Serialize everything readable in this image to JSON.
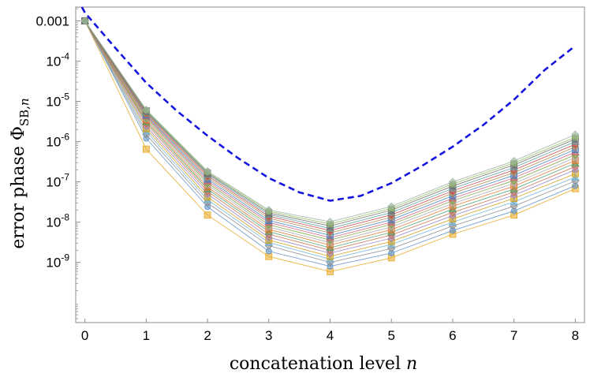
{
  "chart_data": {
    "type": "line",
    "title": "",
    "xlabel": "concatenation level n",
    "ylabel": "error phase Φ_SB,n",
    "yscale": "log",
    "xlim": [
      -0.15,
      8.15
    ],
    "ylim": [
      3.2e-11,
      0.0022
    ],
    "grid": false,
    "legend": "none",
    "x_ticks": [
      0,
      1,
      2,
      3,
      4,
      5,
      6,
      7,
      8
    ],
    "x_tick_labels": [
      "0",
      "1",
      "2",
      "3",
      "4",
      "5",
      "6",
      "7",
      "8"
    ],
    "y_ticks": [
      1e-09,
      1e-08,
      1e-07,
      1e-06,
      1e-05,
      0.0001,
      0.001
    ],
    "y_tick_labels": [
      {
        "base": "10",
        "exp": "-9"
      },
      {
        "base": "10",
        "exp": "-8"
      },
      {
        "base": "10",
        "exp": "-7"
      },
      {
        "base": "10",
        "exp": "-6"
      },
      {
        "base": "10",
        "exp": "-5"
      },
      {
        "base": "10",
        "exp": "-4"
      },
      {
        "base": "0.001",
        "exp": ""
      }
    ],
    "x": [
      0,
      1,
      2,
      3,
      4,
      5,
      6,
      7,
      8
    ],
    "bound": {
      "style": "dashed",
      "color": "#1515e0",
      "x": [
        -0.05,
        0,
        0.5,
        1,
        1.5,
        2,
        2.5,
        3,
        3.5,
        4,
        4.5,
        5,
        5.5,
        6,
        6.5,
        7,
        7.5,
        8
      ],
      "values": [
        0.0022,
        0.0016,
        0.00021,
        2.9e-05,
        5.8e-06,
        1.4e-06,
        3.9e-07,
        1.25e-07,
        5.5e-08,
        3.4e-08,
        4.5e-08,
        9.3e-08,
        2.5e-07,
        7.5e-07,
        2.6e-06,
        1.1e-05,
        6e-05,
        0.00024
      ]
    },
    "series": [
      {
        "color": "#e8a820",
        "values": [
          0.001,
          6.5e-07,
          1.5e-08,
          1.4e-09,
          5.9e-10,
          1.3e-09,
          5e-09,
          1.5e-08,
          6.8e-08
        ]
      },
      {
        "color": "#5b8fc8",
        "values": [
          0.001,
          1.2e-06,
          2.4e-08,
          1.9e-09,
          8e-10,
          1.7e-09,
          6.2e-09,
          1.9e-08,
          8e-08
        ]
      },
      {
        "color": "#8a8a8a",
        "values": [
          0.001,
          1.5e-06,
          3e-08,
          2.6e-09,
          1e-09,
          2.2e-09,
          8e-09,
          2.5e-08,
          1.05e-07
        ]
      },
      {
        "color": "#6fb3d6",
        "values": [
          0.001,
          1.8e-06,
          3.6e-08,
          3.1e-09,
          1.2e-09,
          2.8e-09,
          1e-08,
          3.2e-08,
          1.3e-07
        ]
      },
      {
        "color": "#d4a017",
        "values": [
          0.001,
          2.1e-06,
          4.2e-08,
          3.6e-09,
          1.4e-09,
          3.3e-09,
          1.2e-08,
          3.9e-08,
          1.6e-07
        ]
      },
      {
        "color": "#9a7fc4",
        "values": [
          0.001,
          2.4e-06,
          5e-08,
          4.2e-09,
          1.7e-09,
          4e-09,
          1.45e-08,
          4.7e-08,
          2e-07
        ]
      },
      {
        "color": "#c86f4a",
        "values": [
          0.001,
          2.8e-06,
          5.8e-08,
          5e-09,
          2e-09,
          4.8e-09,
          1.75e-08,
          5.6e-08,
          2.4e-07
        ]
      },
      {
        "color": "#4a9e6b",
        "values": [
          0.001,
          3.1e-06,
          6.6e-08,
          5.8e-09,
          2.3e-09,
          5.6e-09,
          2.1e-08,
          6.6e-08,
          2.9e-07
        ]
      },
      {
        "color": "#e0742b",
        "values": [
          0.001,
          3.4e-06,
          7.4e-08,
          6.6e-09,
          2.7e-09,
          6.5e-09,
          2.5e-08,
          7.8e-08,
          3.4e-07
        ]
      },
      {
        "color": "#a8a8a8",
        "values": [
          0.001,
          3.7e-06,
          8.4e-08,
          7.6e-09,
          3.1e-09,
          7.6e-09,
          2.9e-08,
          9.2e-08,
          4e-07
        ]
      },
      {
        "color": "#7aa33a",
        "values": [
          0.001,
          4e-06,
          9.4e-08,
          8.6e-09,
          3.6e-09,
          8.8e-09,
          3.4e-08,
          1.08e-07,
          4.7e-07
        ]
      },
      {
        "color": "#d45a7a",
        "values": [
          0.001,
          4.3e-06,
          1.05e-07,
          9.8e-09,
          4.1e-09,
          1e-08,
          3.9e-08,
          1.26e-07,
          5.5e-07
        ]
      },
      {
        "color": "#3f7fbf",
        "values": [
          0.001,
          4.6e-06,
          1.17e-07,
          1.1e-08,
          4.7e-09,
          1.15e-08,
          4.5e-08,
          1.46e-07,
          6.4e-07
        ]
      },
      {
        "color": "#b08a4a",
        "values": [
          0.001,
          4.9e-06,
          1.3e-07,
          1.25e-08,
          5.4e-09,
          1.32e-08,
          5.2e-08,
          1.7e-07,
          7.4e-07
        ]
      },
      {
        "color": "#cf3f3f",
        "values": [
          0.001,
          5.2e-06,
          1.43e-07,
          1.4e-08,
          6.2e-09,
          1.52e-08,
          6e-08,
          1.97e-07,
          8.6e-07
        ]
      },
      {
        "color": "#5aa0a0",
        "values": [
          0.001,
          5.5e-06,
          1.55e-07,
          1.55e-08,
          7e-09,
          1.74e-08,
          6.9e-08,
          2.28e-07,
          1e-06
        ]
      },
      {
        "color": "#6a6a6a",
        "values": [
          0.001,
          5.8e-06,
          1.65e-07,
          1.7e-08,
          8e-09,
          1.98e-08,
          7.9e-08,
          2.63e-07,
          1.16e-06
        ]
      },
      {
        "color": "#8fbf5a",
        "values": [
          0.001,
          6e-06,
          1.75e-07,
          1.85e-08,
          9e-09,
          2.2e-08,
          8.9e-08,
          2.95e-07,
          1.3e-06
        ]
      },
      {
        "color": "#9ab0a0",
        "values": [
          0.001,
          6.2e-06,
          1.85e-07,
          2e-08,
          1.02e-08,
          2.45e-08,
          1e-07,
          3.3e-07,
          1.5e-06
        ]
      }
    ]
  }
}
